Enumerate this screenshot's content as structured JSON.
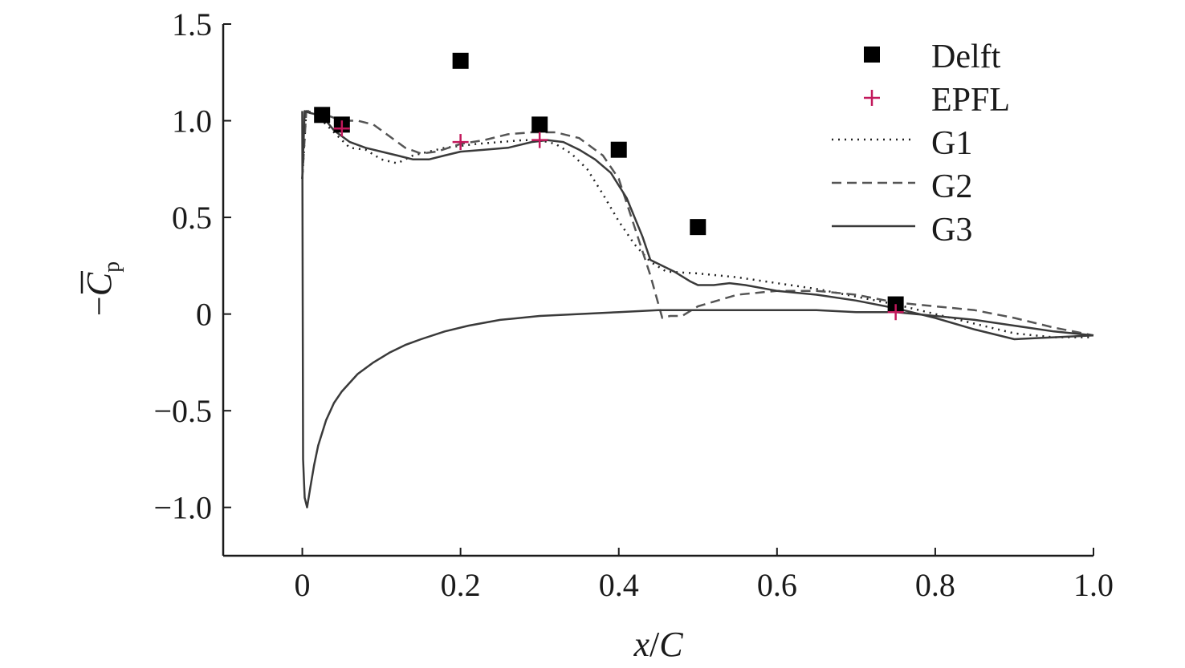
{
  "chart_data": {
    "type": "line",
    "title": "",
    "xlabel": {
      "var": "x",
      "slash": "/",
      "var2": "C"
    },
    "ylabel": {
      "minus": "−",
      "var": "C",
      "sub": "p"
    },
    "xlim": [
      -0.1,
      1.0
    ],
    "ylim": [
      -1.25,
      1.5
    ],
    "xticks": [
      {
        "value": 0,
        "label": "0"
      },
      {
        "value": 0.2,
        "label": "0.2"
      },
      {
        "value": 0.4,
        "label": "0.4"
      },
      {
        "value": 0.6,
        "label": "0.6"
      },
      {
        "value": 0.8,
        "label": "0.8"
      },
      {
        "value": 1.0,
        "label": "1.0"
      }
    ],
    "yticks": [
      {
        "value": 1.5,
        "label": "1.5"
      },
      {
        "value": 1.0,
        "label": "1.0"
      },
      {
        "value": 0.5,
        "label": "0.5"
      },
      {
        "value": 0,
        "label": "0"
      },
      {
        "value": -0.5,
        "label": "−0.5"
      },
      {
        "value": -1.0,
        "label": "−1.0"
      }
    ],
    "grid": false,
    "legend_position": "top-right",
    "series": [
      {
        "name": "Delft",
        "type": "scatter",
        "marker": "square",
        "color": "#000000",
        "x": [
          0.025,
          0.05,
          0.2,
          0.3,
          0.4,
          0.5,
          0.75
        ],
        "y": [
          1.03,
          0.98,
          1.31,
          0.98,
          0.85,
          0.45,
          0.05
        ]
      },
      {
        "name": "EPFL",
        "type": "scatter",
        "marker": "plus",
        "color": "#c2185b",
        "x": [
          0.05,
          0.2,
          0.3,
          0.75
        ],
        "y": [
          0.96,
          0.89,
          0.9,
          0.01
        ]
      },
      {
        "name": "G1",
        "type": "line",
        "dash": "dotted",
        "color": "#222222",
        "x": [
          0.0,
          0.005,
          0.015,
          0.025,
          0.04,
          0.05,
          0.06,
          0.08,
          0.1,
          0.12,
          0.14,
          0.16,
          0.18,
          0.2,
          0.22,
          0.25,
          0.28,
          0.3,
          0.32,
          0.34,
          0.36,
          0.38,
          0.4,
          0.42,
          0.44,
          0.46,
          0.5,
          0.55,
          0.6,
          0.65,
          0.7,
          0.75,
          0.8,
          0.85,
          0.9,
          0.95,
          1.0
        ],
        "y": [
          0.7,
          1.05,
          1.04,
          1.0,
          0.94,
          0.9,
          0.86,
          0.85,
          0.8,
          0.78,
          0.82,
          0.84,
          0.86,
          0.87,
          0.88,
          0.89,
          0.9,
          0.9,
          0.88,
          0.83,
          0.75,
          0.62,
          0.48,
          0.36,
          0.27,
          0.22,
          0.21,
          0.19,
          0.16,
          0.13,
          0.09,
          0.05,
          0.0,
          -0.05,
          -0.1,
          -0.12,
          -0.12
        ]
      },
      {
        "name": "G2",
        "type": "line",
        "dash": "dashed",
        "color": "#555555",
        "x": [
          0.0,
          0.005,
          0.015,
          0.03,
          0.05,
          0.07,
          0.09,
          0.11,
          0.13,
          0.15,
          0.17,
          0.2,
          0.23,
          0.26,
          0.29,
          0.32,
          0.35,
          0.38,
          0.4,
          0.42,
          0.44,
          0.455,
          0.465,
          0.48,
          0.5,
          0.55,
          0.6,
          0.65,
          0.7,
          0.75,
          0.8,
          0.85,
          0.9,
          0.95,
          1.0
        ],
        "y": [
          0.7,
          1.05,
          1.05,
          1.03,
          1.0,
          1.0,
          0.98,
          0.92,
          0.86,
          0.83,
          0.84,
          0.88,
          0.9,
          0.93,
          0.94,
          0.94,
          0.91,
          0.82,
          0.7,
          0.45,
          0.2,
          -0.02,
          -0.01,
          -0.01,
          0.04,
          0.1,
          0.12,
          0.12,
          0.1,
          0.06,
          0.04,
          0.02,
          -0.02,
          -0.07,
          -0.11
        ]
      },
      {
        "name": "G3",
        "type": "line",
        "dash": "solid",
        "color": "#3a3a3a",
        "x": [
          0.0,
          0.003,
          0.01,
          0.02,
          0.03,
          0.04,
          0.06,
          0.08,
          0.1,
          0.12,
          0.14,
          0.16,
          0.18,
          0.2,
          0.23,
          0.26,
          0.29,
          0.31,
          0.33,
          0.35,
          0.37,
          0.39,
          0.41,
          0.43,
          0.44,
          0.45,
          0.47,
          0.49,
          0.5,
          0.52,
          0.54,
          0.56,
          0.6,
          0.65,
          0.7,
          0.75,
          0.8,
          0.85,
          0.9,
          0.95,
          1.0
        ],
        "y": [
          0.7,
          1.05,
          1.04,
          1.03,
          1.0,
          0.95,
          0.89,
          0.86,
          0.84,
          0.82,
          0.8,
          0.8,
          0.82,
          0.84,
          0.85,
          0.86,
          0.89,
          0.9,
          0.89,
          0.85,
          0.8,
          0.73,
          0.6,
          0.4,
          0.28,
          0.26,
          0.22,
          0.17,
          0.15,
          0.15,
          0.16,
          0.15,
          0.12,
          0.1,
          0.07,
          0.03,
          -0.02,
          -0.08,
          -0.13,
          -0.12,
          -0.11
        ]
      },
      {
        "name": "",
        "type": "line",
        "dash": "solid",
        "color": "#3a3a3a",
        "x": [
          0.0,
          0.001,
          0.003,
          0.006,
          0.01,
          0.015,
          0.02,
          0.03,
          0.04,
          0.05,
          0.07,
          0.09,
          0.11,
          0.13,
          0.15,
          0.18,
          0.21,
          0.25,
          0.3,
          0.35,
          0.4,
          0.45,
          0.5,
          0.55,
          0.6,
          0.65,
          0.7,
          0.75,
          0.8,
          0.85,
          0.9,
          0.95,
          1.0
        ],
        "y": [
          1.05,
          -0.75,
          -0.95,
          -1.0,
          -0.9,
          -0.78,
          -0.68,
          -0.55,
          -0.46,
          -0.4,
          -0.31,
          -0.25,
          -0.2,
          -0.16,
          -0.13,
          -0.09,
          -0.06,
          -0.03,
          -0.01,
          0.0,
          0.01,
          0.02,
          0.02,
          0.02,
          0.02,
          0.02,
          0.01,
          0.01,
          -0.01,
          -0.03,
          -0.06,
          -0.09,
          -0.11
        ]
      }
    ]
  }
}
